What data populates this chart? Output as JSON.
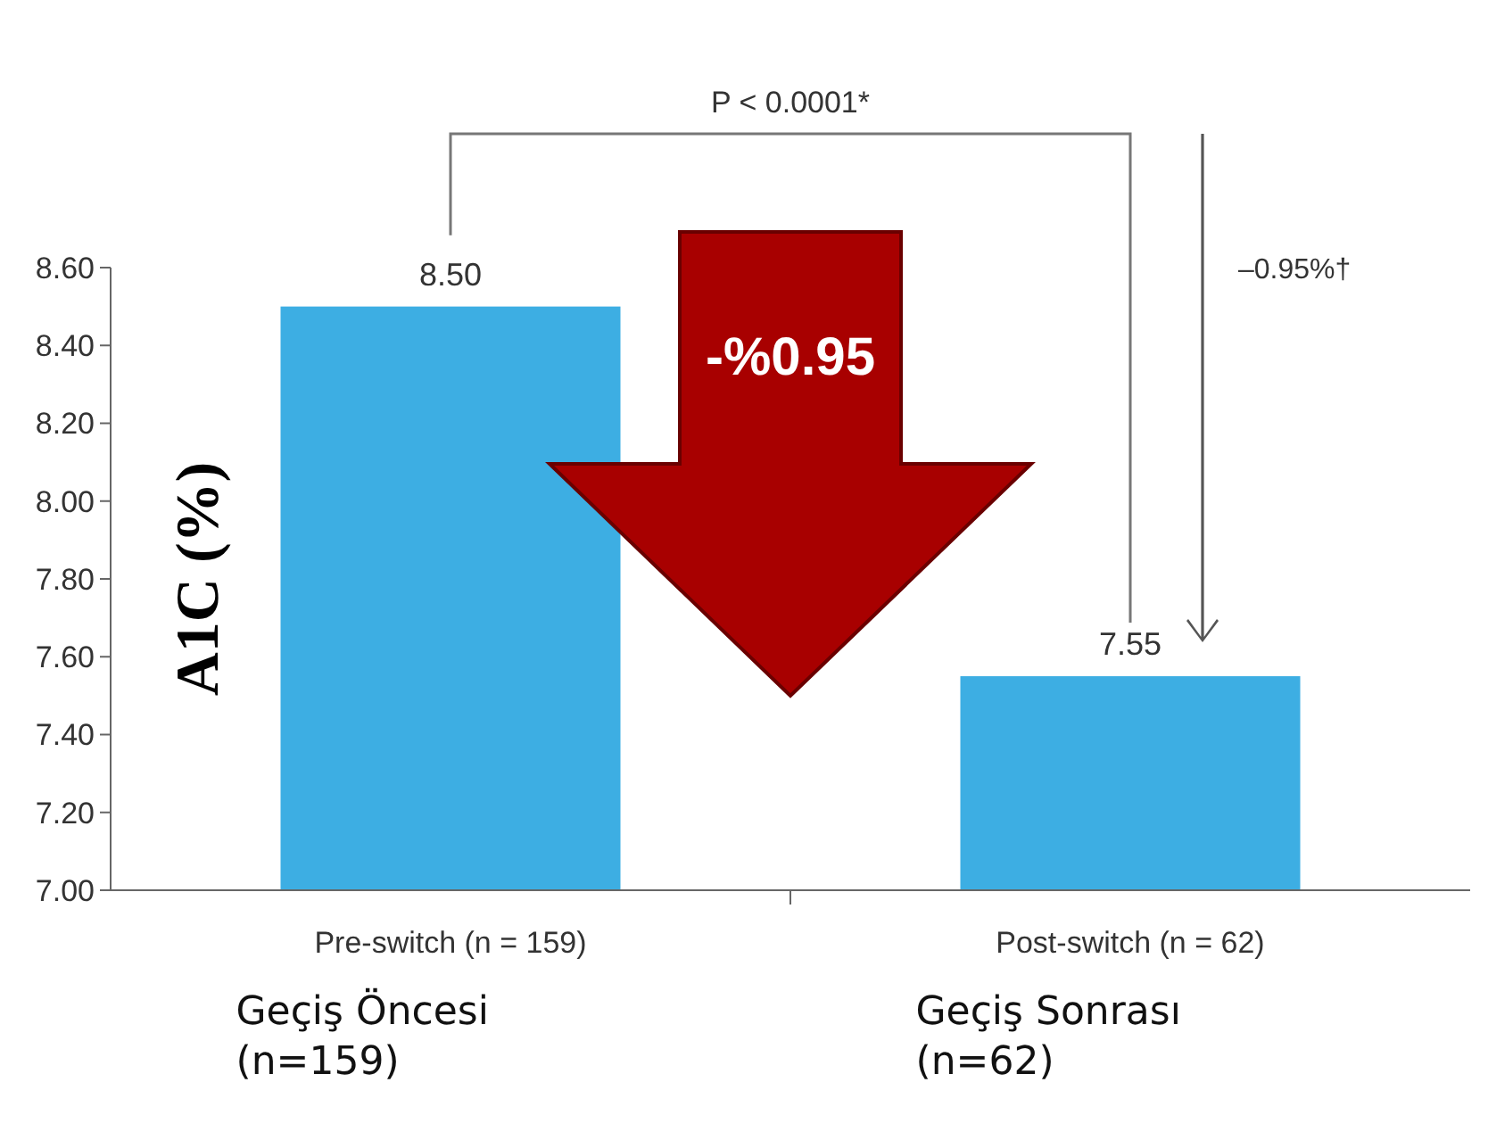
{
  "chart_data": {
    "type": "bar",
    "ylabel": "A1C (%)",
    "categories": [
      "Pre-switch (n = 159)",
      "Post-switch (n = 62)"
    ],
    "values": [
      8.5,
      7.55
    ],
    "color": "#3daee3",
    "value_labels": [
      "8.50",
      "7.55"
    ],
    "ylim": [
      7.0,
      8.6
    ],
    "yticks": [
      {
        "value": 7.0,
        "label": "7.00"
      },
      {
        "value": 7.2,
        "label": "7.20"
      },
      {
        "value": 7.4,
        "label": "7.40"
      },
      {
        "value": 7.6,
        "label": "7.60"
      },
      {
        "value": 7.8,
        "label": "7.80"
      },
      {
        "value": 8.0,
        "label": "8.00"
      },
      {
        "value": 8.2,
        "label": "8.20"
      },
      {
        "value": 8.4,
        "label": "8.40"
      },
      {
        "value": 8.6,
        "label": "8.60"
      }
    ],
    "annotations": [
      "P < 0.0001*",
      "–0.95%†",
      "-%0.95",
      "Geçiş Öncesi (n=159)",
      "Geçiş Sonrası (n=62)"
    ]
  }
}
